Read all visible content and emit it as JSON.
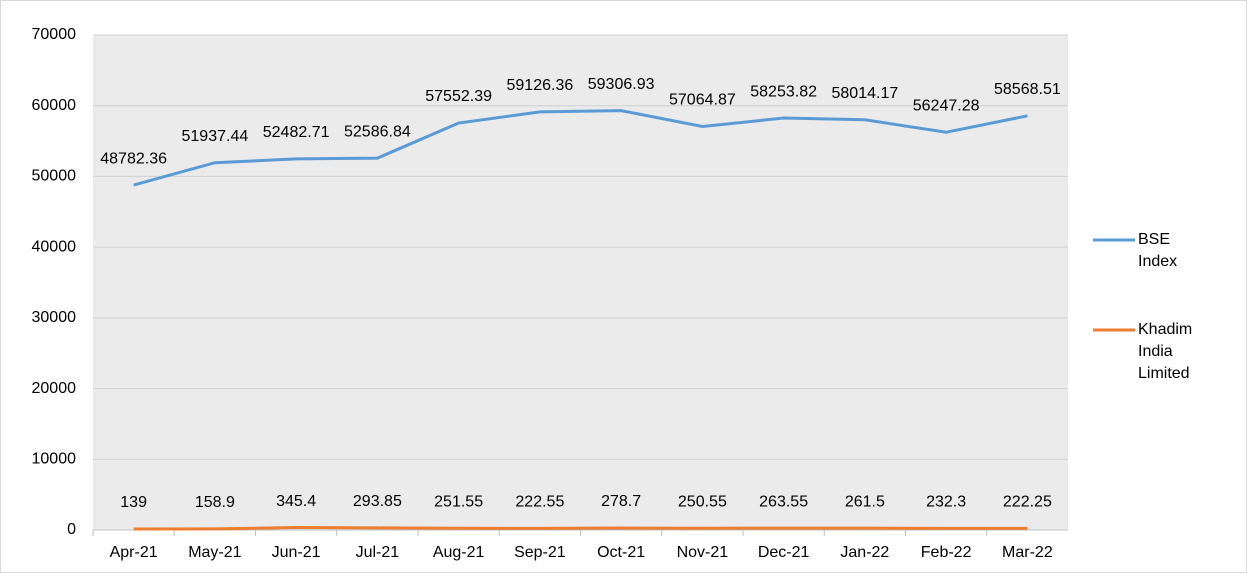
{
  "chart_data": {
    "type": "line",
    "categories": [
      "Apr-21",
      "May-21",
      "Jun-21",
      "Jul-21",
      "Aug-21",
      "Sep-21",
      "Oct-21",
      "Nov-21",
      "Dec-21",
      "Jan-22",
      "Feb-22",
      "Mar-22"
    ],
    "series": [
      {
        "name": "BSE Index",
        "color": "#5b9bd5",
        "values": [
          48782.36,
          51937.44,
          52482.71,
          52586.84,
          57552.39,
          59126.36,
          59306.93,
          57064.87,
          58253.82,
          58014.17,
          56247.28,
          58568.51
        ]
      },
      {
        "name": "Khadim India Limited",
        "color": "#ed7d31",
        "values": [
          139,
          158.9,
          345.4,
          293.85,
          251.55,
          222.55,
          278.7,
          250.55,
          263.55,
          261.5,
          232.3,
          222.25
        ]
      }
    ],
    "ylim": [
      0,
      70000
    ],
    "yticks": [
      0,
      10000,
      20000,
      30000,
      40000,
      50000,
      60000,
      70000
    ],
    "grid": true,
    "legend": "right"
  }
}
